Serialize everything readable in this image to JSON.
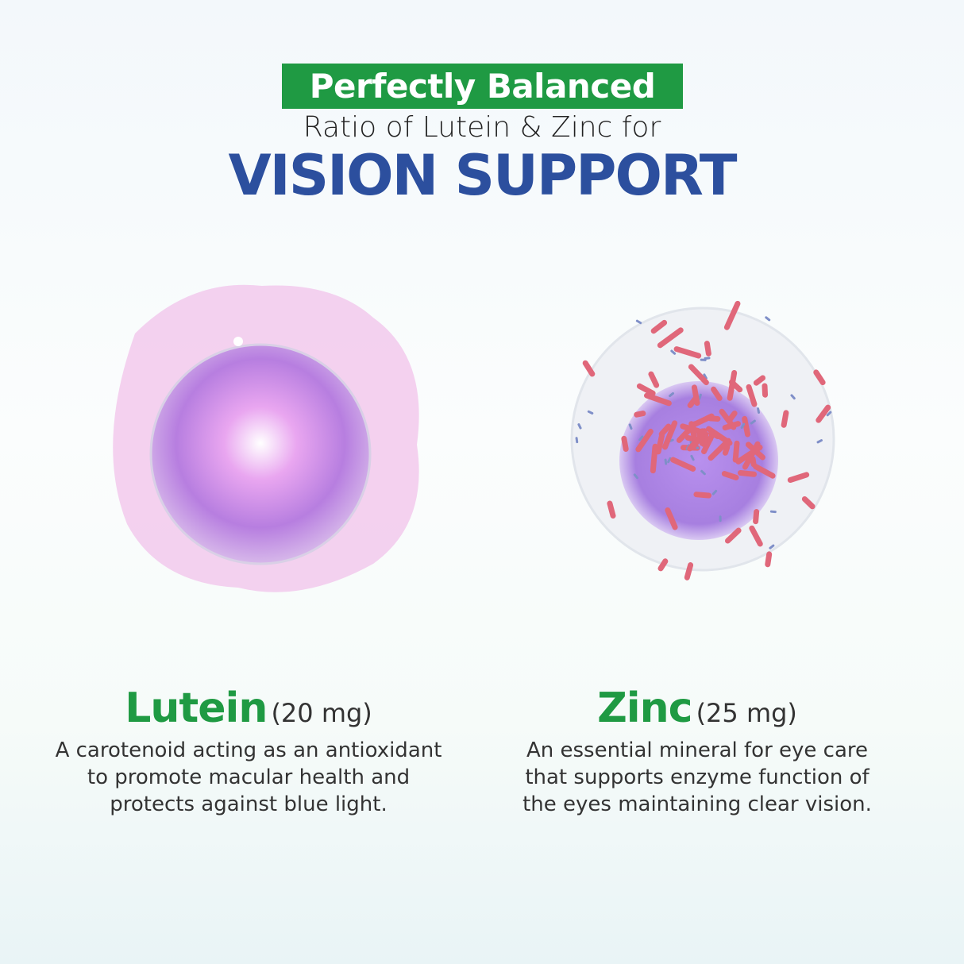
{
  "header": {
    "badge": "Perfectly Balanced",
    "subtitle": "Ratio of Lutein & Zinc for",
    "title": "VISION SUPPORT"
  },
  "colors": {
    "green": "#1f9a43",
    "blue": "#2c4f9e"
  },
  "ingredients": [
    {
      "name": "Lutein",
      "dose": "(20 mg)",
      "description": "A carotenoid acting as an antioxidant to promote macular health and protects against blue light.",
      "image": "lutein-cell-illustration"
    },
    {
      "name": "Zinc",
      "dose": "(25 mg)",
      "description": "An essential mineral for eye care that supports enzyme function of the eyes maintaining clear vision.",
      "image": "zinc-cell-illustration"
    }
  ]
}
